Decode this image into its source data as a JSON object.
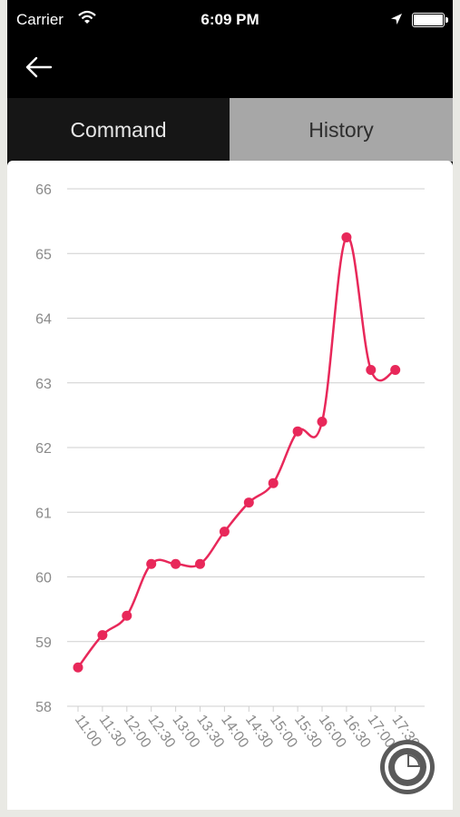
{
  "status_bar": {
    "carrier": "Carrier",
    "time": "6:09 PM",
    "icons": [
      "wifi-icon",
      "location-arrow-icon",
      "battery-icon"
    ]
  },
  "navbar": {
    "back_icon": "arrow-left-icon"
  },
  "tabs": [
    {
      "label": "Command",
      "active": true
    },
    {
      "label": "History",
      "active": false
    }
  ],
  "colors": {
    "line": "#e8285a",
    "gridline": "#cfcfcf",
    "tick_label": "#8a8a8a",
    "active_tab": "#161616",
    "inactive_tab": "#a7a7a7"
  },
  "chart_data": {
    "type": "line",
    "title": "",
    "xlabel": "",
    "ylabel": "",
    "ylim": [
      58,
      66
    ],
    "yticks": [
      58,
      59,
      60,
      61,
      62,
      63,
      64,
      65,
      66
    ],
    "grid": true,
    "x": [
      "11:00",
      "11:30",
      "12:00",
      "12:30",
      "13:00",
      "13:30",
      "14:00",
      "14:30",
      "15:00",
      "15:30",
      "16:00",
      "16:30",
      "17:00",
      "17:30"
    ],
    "series": [
      {
        "values": [
          58.6,
          59.1,
          59.4,
          60.2,
          60.2,
          60.2,
          60.7,
          61.15,
          61.45,
          62.25,
          62.4,
          65.25,
          63.2,
          63.2
        ]
      }
    ]
  },
  "fab": {
    "icon": "pie-chart-icon"
  }
}
